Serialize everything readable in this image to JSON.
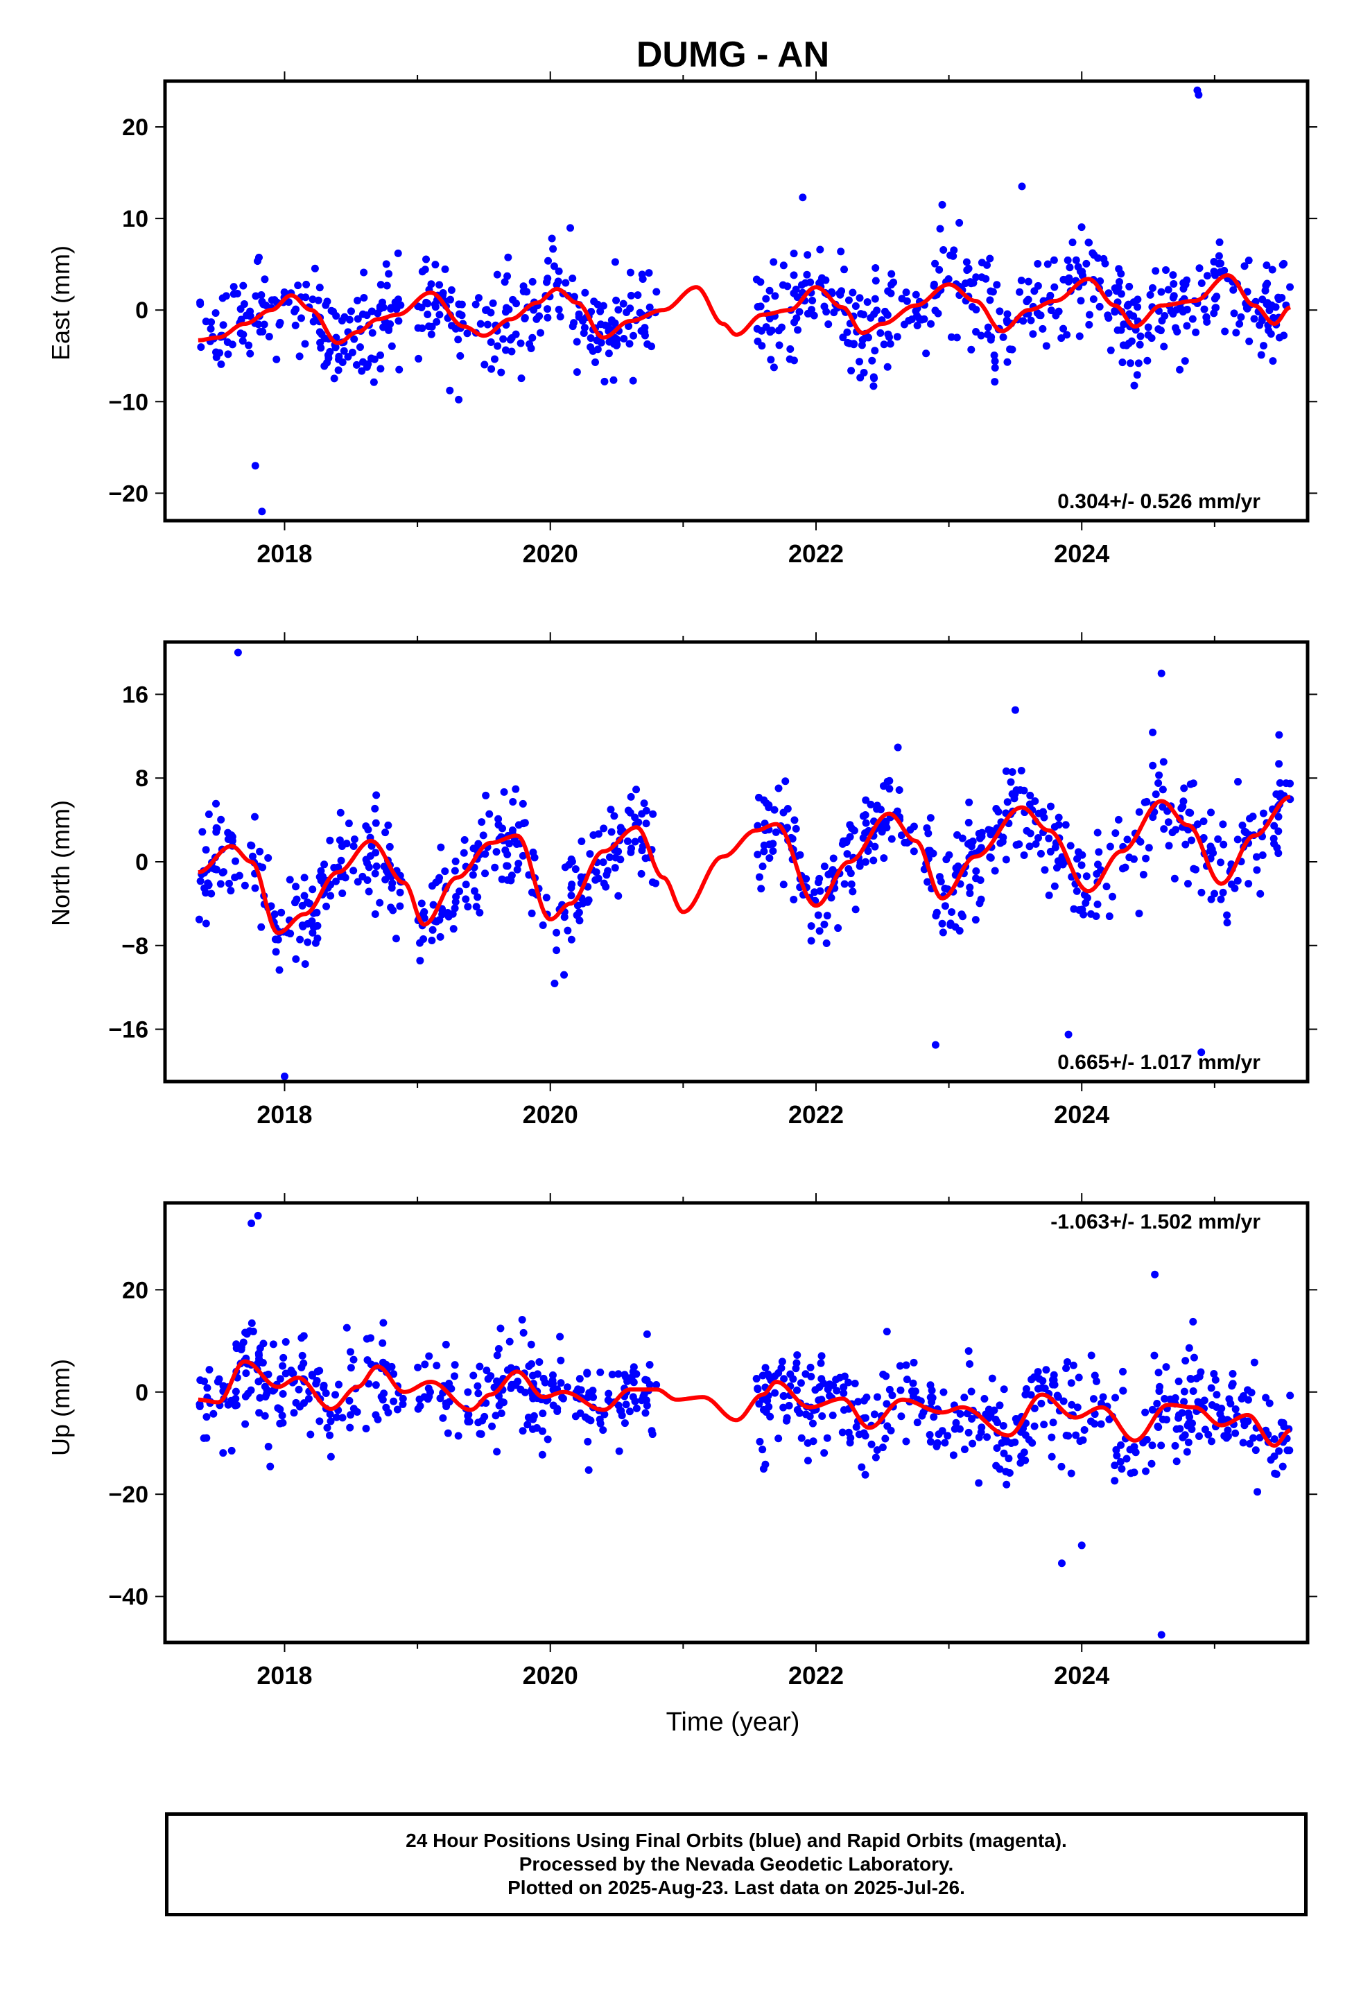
{
  "title": "DUMG - AN",
  "colors": {
    "points": "#0000ff",
    "model": "#ff0000",
    "axes": "#000000"
  },
  "xlabel": "Time (year)",
  "footer": {
    "line1": "24 Hour Positions Using Final Orbits (blue) and Rapid Orbits (magenta).",
    "line2": "Processed by the Nevada Geodetic Laboratory.",
    "line3": "Plotted on 2025-Aug-23. Last data on 2025-Jul-26."
  },
  "chart_data": [
    {
      "type": "scatter",
      "name": "east",
      "ylabel": "East (mm)",
      "xlim": [
        2017.1,
        2025.7
      ],
      "ylim": [
        -23,
        25
      ],
      "x_ticks": [
        2018,
        2020,
        2022,
        2024
      ],
      "y_ticks": [
        -20,
        -10,
        0,
        10,
        20
      ],
      "annotation": "0.304+/- 0.526 mm/yr",
      "annotation_position": "bottom-right",
      "data_ranges": [
        [
          2017.35,
          2018.9
        ],
        [
          2019.0,
          2020.8
        ],
        [
          2021.55,
          2025.57
        ]
      ],
      "model": [
        [
          2017.35,
          -3.3
        ],
        [
          2017.5,
          -3.0
        ],
        [
          2017.7,
          -1.5
        ],
        [
          2017.9,
          0.0
        ],
        [
          2018.05,
          1.6
        ],
        [
          2018.2,
          0.0
        ],
        [
          2018.4,
          -3.6
        ],
        [
          2018.55,
          -2.4
        ],
        [
          2018.7,
          -1.0
        ],
        [
          2018.85,
          -0.5
        ],
        [
          2019.1,
          1.9
        ],
        [
          2019.35,
          -1.8
        ],
        [
          2019.5,
          -2.8
        ],
        [
          2019.7,
          -1.0
        ],
        [
          2019.9,
          0.8
        ],
        [
          2020.05,
          2.3
        ],
        [
          2020.2,
          0.8
        ],
        [
          2020.4,
          -3.0
        ],
        [
          2020.6,
          -1.2
        ],
        [
          2020.85,
          0.0
        ],
        [
          2021.1,
          2.5
        ],
        [
          2021.3,
          -1.5
        ],
        [
          2021.4,
          -2.7
        ],
        [
          2021.6,
          -0.5
        ],
        [
          2021.8,
          0.0
        ],
        [
          2022.0,
          2.5
        ],
        [
          2022.2,
          0.3
        ],
        [
          2022.35,
          -2.5
        ],
        [
          2022.5,
          -1.5
        ],
        [
          2022.75,
          0.5
        ],
        [
          2023.0,
          2.8
        ],
        [
          2023.2,
          1.0
        ],
        [
          2023.4,
          -2.3
        ],
        [
          2023.6,
          0.0
        ],
        [
          2023.8,
          1.0
        ],
        [
          2024.05,
          3.4
        ],
        [
          2024.25,
          0.5
        ],
        [
          2024.4,
          -1.8
        ],
        [
          2024.6,
          0.5
        ],
        [
          2024.85,
          1.0
        ],
        [
          2025.1,
          3.8
        ],
        [
          2025.3,
          0.5
        ],
        [
          2025.45,
          -1.5
        ],
        [
          2025.57,
          0.3
        ]
      ],
      "outliers": [
        [
          2024.88,
          23.5
        ],
        [
          2024.87,
          24.0
        ],
        [
          2017.78,
          -17.0
        ],
        [
          2017.83,
          -22.0
        ],
        [
          2023.55,
          13.5
        ],
        [
          2022.95,
          11.5
        ],
        [
          2021.9,
          12.3
        ]
      ]
    },
    {
      "type": "scatter",
      "name": "north",
      "ylabel": "North (mm)",
      "xlim": [
        2017.1,
        2025.7
      ],
      "ylim": [
        -21,
        21
      ],
      "x_ticks": [
        2018,
        2020,
        2022,
        2024
      ],
      "y_ticks": [
        -16,
        -8,
        0,
        8,
        16
      ],
      "annotation": "0.665+/- 1.017 mm/yr",
      "annotation_position": "bottom-right",
      "data_ranges": [
        [
          2017.35,
          2018.9
        ],
        [
          2019.0,
          2020.8
        ],
        [
          2021.55,
          2025.57
        ]
      ],
      "model": [
        [
          2017.35,
          -1.0
        ],
        [
          2017.6,
          1.5
        ],
        [
          2017.75,
          0.0
        ],
        [
          2017.95,
          -6.8
        ],
        [
          2018.15,
          -5.0
        ],
        [
          2018.4,
          -1.0
        ],
        [
          2018.65,
          2.0
        ],
        [
          2018.9,
          -2.0
        ],
        [
          2019.05,
          -6.0
        ],
        [
          2019.3,
          -1.5
        ],
        [
          2019.55,
          1.8
        ],
        [
          2019.75,
          2.5
        ],
        [
          2020.0,
          -5.5
        ],
        [
          2020.15,
          -4.0
        ],
        [
          2020.4,
          1.0
        ],
        [
          2020.65,
          3.3
        ],
        [
          2020.85,
          -1.5
        ],
        [
          2021.0,
          -4.8
        ],
        [
          2021.3,
          0.5
        ],
        [
          2021.55,
          3.0
        ],
        [
          2021.7,
          3.6
        ],
        [
          2022.0,
          -4.2
        ],
        [
          2022.25,
          0.0
        ],
        [
          2022.55,
          4.6
        ],
        [
          2022.75,
          2.0
        ],
        [
          2022.95,
          -3.5
        ],
        [
          2023.2,
          0.5
        ],
        [
          2023.55,
          5.2
        ],
        [
          2023.75,
          3.0
        ],
        [
          2024.05,
          -2.8
        ],
        [
          2024.3,
          1.0
        ],
        [
          2024.6,
          5.8
        ],
        [
          2024.8,
          3.5
        ],
        [
          2025.05,
          -2.1
        ],
        [
          2025.3,
          2.5
        ],
        [
          2025.57,
          6.2
        ]
      ],
      "outliers": [
        [
          2017.65,
          20.0
        ],
        [
          2018.0,
          -20.5
        ],
        [
          2024.6,
          18.0
        ],
        [
          2023.5,
          14.5
        ],
        [
          2024.9,
          -18.2
        ],
        [
          2022.9,
          -17.5
        ],
        [
          2023.9,
          -16.5
        ]
      ]
    },
    {
      "type": "scatter",
      "name": "up",
      "ylabel": "Up (mm)",
      "xlim": [
        2017.1,
        2025.7
      ],
      "ylim": [
        -49,
        37
      ],
      "x_ticks": [
        2018,
        2020,
        2022,
        2024
      ],
      "y_ticks": [
        -40,
        -20,
        0,
        20
      ],
      "annotation": "-1.063+/- 1.502 mm/yr",
      "annotation_position": "top-right",
      "data_ranges": [
        [
          2017.35,
          2018.9
        ],
        [
          2019.0,
          2020.8
        ],
        [
          2021.55,
          2025.57
        ]
      ],
      "model": [
        [
          2017.35,
          -1.5
        ],
        [
          2017.5,
          -2.0
        ],
        [
          2017.7,
          6.0
        ],
        [
          2017.95,
          1.0
        ],
        [
          2018.1,
          2.8
        ],
        [
          2018.35,
          -3.3
        ],
        [
          2018.55,
          1.0
        ],
        [
          2018.7,
          5.0
        ],
        [
          2018.9,
          0.0
        ],
        [
          2019.1,
          2.0
        ],
        [
          2019.4,
          -3.5
        ],
        [
          2019.55,
          -0.5
        ],
        [
          2019.75,
          4.0
        ],
        [
          2019.95,
          -1.0
        ],
        [
          2020.1,
          0.0
        ],
        [
          2020.4,
          -3.5
        ],
        [
          2020.6,
          0.5
        ],
        [
          2020.8,
          0.5
        ],
        [
          2020.95,
          -1.5
        ],
        [
          2021.15,
          -1.0
        ],
        [
          2021.4,
          -5.5
        ],
        [
          2021.6,
          -0.5
        ],
        [
          2021.7,
          2.0
        ],
        [
          2021.95,
          -3.0
        ],
        [
          2022.2,
          -1.3
        ],
        [
          2022.4,
          -7.0
        ],
        [
          2022.65,
          -1.5
        ],
        [
          2022.95,
          -4.0
        ],
        [
          2023.1,
          -3.0
        ],
        [
          2023.45,
          -8.5
        ],
        [
          2023.7,
          -0.5
        ],
        [
          2023.95,
          -5.0
        ],
        [
          2024.15,
          -3.0
        ],
        [
          2024.4,
          -9.5
        ],
        [
          2024.65,
          -2.5
        ],
        [
          2024.85,
          -3.0
        ],
        [
          2025.05,
          -6.5
        ],
        [
          2025.25,
          -4.5
        ],
        [
          2025.45,
          -10.5
        ],
        [
          2025.57,
          -7.5
        ]
      ],
      "outliers": [
        [
          2017.8,
          34.5
        ],
        [
          2017.75,
          33.0
        ],
        [
          2024.6,
          -47.5
        ],
        [
          2023.85,
          -33.5
        ],
        [
          2024.0,
          -30.0
        ],
        [
          2024.55,
          23.0
        ]
      ]
    }
  ]
}
